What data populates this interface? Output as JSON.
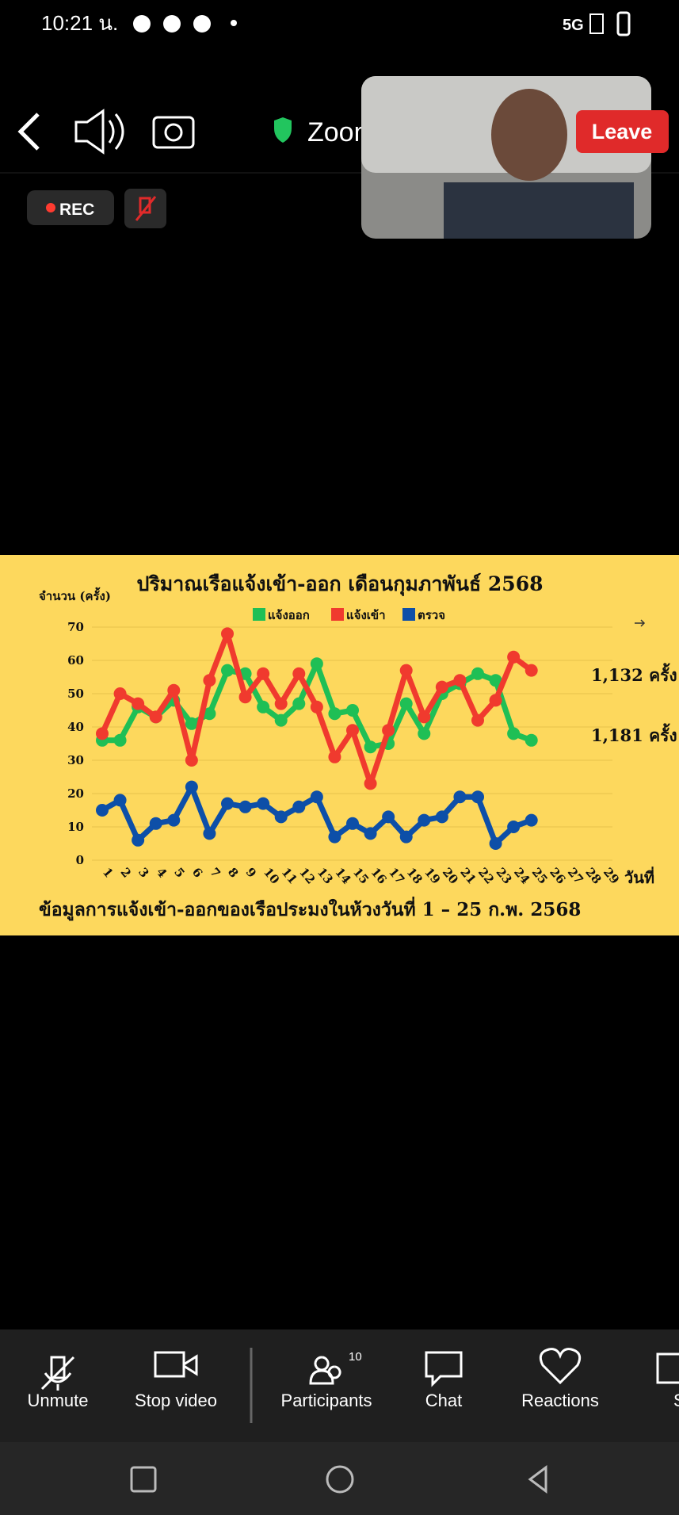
{
  "status_bar": {
    "time": "10:21 น.",
    "network": "5G"
  },
  "top_bar": {
    "meeting_name": "Zoom",
    "leave": "Leave",
    "rec": "REC"
  },
  "chart_data": {
    "type": "line",
    "title": "ปริมาณเรือแจ้งเข้า-ออก เดือนกุมภาพันธ์ 2568",
    "y_label": "จำนวน (ครั้ง)",
    "x_label": "วันที่",
    "footer": "ข้อมูลการแจ้งเข้า-ออกของเรือประมงในห้วงวันที่ 1 – 25 ก.พ. 2568",
    "annotations": [
      "1,132 ครั้ง",
      "1,181 ครั้ง"
    ],
    "categories": [
      "1",
      "2",
      "3",
      "4",
      "5",
      "6",
      "7",
      "8",
      "9",
      "10",
      "11",
      "12",
      "13",
      "14",
      "15",
      "16",
      "17",
      "18",
      "19",
      "20",
      "21",
      "22",
      "23",
      "24",
      "25",
      "26",
      "27",
      "28",
      "29"
    ],
    "series": [
      {
        "name": "แจ้งออก",
        "color": "#1fbf55",
        "values": [
          36,
          36,
          46,
          43,
          48,
          41,
          44,
          57,
          56,
          46,
          42,
          47,
          59,
          44,
          45,
          34,
          35,
          47,
          38,
          50,
          53,
          56,
          54,
          38,
          36,
          null,
          null,
          null,
          null
        ]
      },
      {
        "name": "แจ้งเข้า",
        "color": "#f03a2e",
        "values": [
          38,
          50,
          47,
          43,
          51,
          30,
          54,
          68,
          49,
          56,
          47,
          56,
          46,
          31,
          39,
          23,
          39,
          57,
          43,
          52,
          54,
          42,
          48,
          61,
          57,
          null,
          null,
          null,
          null
        ]
      },
      {
        "name": "ตรวจ",
        "color": "#0d4fa8",
        "values": [
          15,
          18,
          6,
          11,
          12,
          22,
          8,
          17,
          16,
          17,
          13,
          16,
          19,
          7,
          11,
          8,
          13,
          7,
          12,
          13,
          19,
          19,
          5,
          10,
          12,
          null,
          null,
          null,
          null
        ]
      }
    ],
    "ylim": [
      0,
      70
    ],
    "yticks": [
      0,
      10,
      20,
      30,
      40,
      50,
      60,
      70
    ],
    "grid": true
  },
  "toolbar": {
    "items": [
      "Unmute",
      "Stop video",
      "Participants",
      "Chat",
      "Reactions",
      "Sha"
    ],
    "participants_count": 10
  }
}
